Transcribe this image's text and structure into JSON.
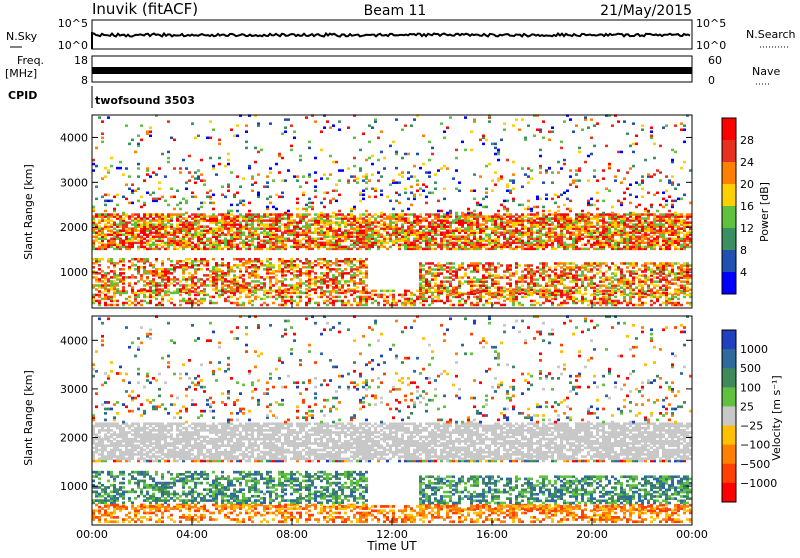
{
  "header": {
    "station": "Inuvik (fitACF)",
    "beam": "Beam 11",
    "date": "21/May/2015"
  },
  "top_panels": {
    "nsky_label": "N.Sky",
    "nsky_ticks": [
      "10^5",
      "10^0"
    ],
    "nsearch_label": "N.Search",
    "freq_label_1": "Freq.",
    "freq_label_2": "[MHz]",
    "freq_ticks": [
      "18",
      "8"
    ],
    "nave_label": "Nave",
    "nave_ticks": [
      "60",
      "0"
    ],
    "cpid_label": "CPID",
    "cpid_value": "twofsound 3503"
  },
  "chart_data": [
    {
      "type": "heatmap",
      "name": "power",
      "ylabel": "Slant Range [km]",
      "xlabel": "Time UT",
      "xlim": [
        0,
        24
      ],
      "ylim": [
        200,
        4500
      ],
      "y_ticks": [
        1000,
        2000,
        3000,
        4000
      ],
      "x_ticks": [
        "00:00",
        "04:00",
        "08:00",
        "12:00",
        "16:00",
        "20:00",
        "00:00"
      ],
      "colorbar": {
        "label": "Power [dB]",
        "ticks": [
          "28",
          "24",
          "20",
          "16",
          "12",
          "8",
          "4"
        ],
        "colors": [
          "#ff0000",
          "#e83020",
          "#ff8000",
          "#ffd000",
          "#60c040",
          "#3a9060",
          "#2050b0",
          "#0000ff"
        ]
      }
    },
    {
      "type": "heatmap",
      "name": "velocity",
      "ylabel": "Slant Range [km]",
      "xlabel": "Time UT",
      "xlim": [
        0,
        24
      ],
      "ylim": [
        200,
        4500
      ],
      "y_ticks": [
        1000,
        2000,
        3000,
        4000
      ],
      "x_ticks": [
        "00:00",
        "04:00",
        "08:00",
        "12:00",
        "16:00",
        "20:00",
        "00:00"
      ],
      "colorbar": {
        "label": "Velocity [m s⁻¹]",
        "ticks": [
          "1000",
          "500",
          "100",
          "25",
          "−25",
          "−100",
          "−500",
          "−1000"
        ],
        "colors": [
          "#2040c0",
          "#2e6a9e",
          "#3f8a5a",
          "#60c040",
          "#c8c8c8",
          "#ffc000",
          "#ff8000",
          "#ff4000",
          "#ff0000"
        ]
      }
    }
  ],
  "x_axis_title": "Time UT"
}
